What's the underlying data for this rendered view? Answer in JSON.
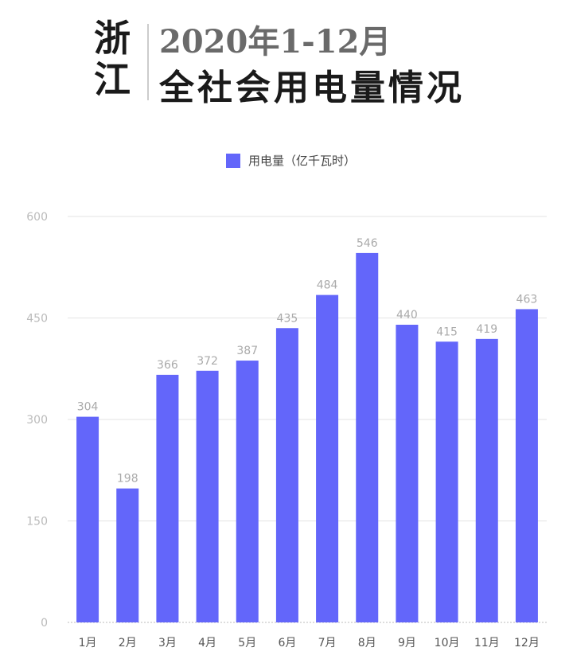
{
  "title": {
    "region": "浙江",
    "line1": "2020年1-12月",
    "line2": "全社会用电量情况"
  },
  "chart_data": {
    "type": "bar",
    "categories": [
      "1月",
      "2月",
      "3月",
      "4月",
      "5月",
      "6月",
      "7月",
      "8月",
      "9月",
      "10月",
      "11月",
      "12月"
    ],
    "series": [
      {
        "name": "用电量（亿千瓦时）",
        "values": [
          304,
          198,
          366,
          372,
          387,
          435,
          484,
          546,
          440,
          415,
          419,
          463
        ],
        "color": "#6366fa"
      }
    ],
    "ylim": [
      0,
      600
    ],
    "yticks": [
      0,
      150,
      300,
      450,
      600
    ],
    "grid": true,
    "legend": "top-center",
    "data_labels": true
  }
}
